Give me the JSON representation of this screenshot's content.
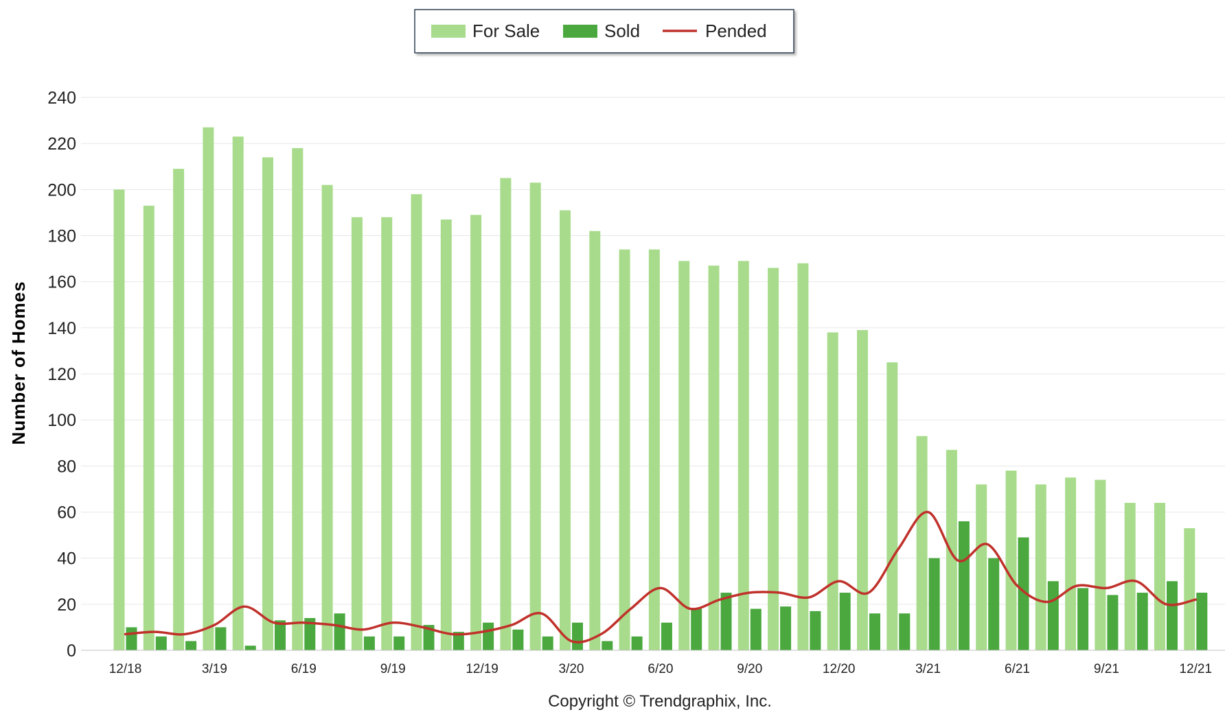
{
  "chart_data": {
    "type": "bar",
    "ylabel": "Number of Homes",
    "xlabel": "",
    "ylim": [
      0,
      240
    ],
    "yticks": [
      0,
      20,
      40,
      60,
      80,
      100,
      120,
      140,
      160,
      180,
      200,
      220,
      240
    ],
    "grid": true,
    "legend_position": "top-center",
    "categories": [
      "12/18",
      "1/19",
      "2/19",
      "3/19",
      "4/19",
      "5/19",
      "6/19",
      "7/19",
      "8/19",
      "9/19",
      "10/19",
      "11/19",
      "12/19",
      "1/20",
      "2/20",
      "3/20",
      "4/20",
      "5/20",
      "6/20",
      "7/20",
      "8/20",
      "9/20",
      "10/20",
      "11/20",
      "12/20",
      "1/21",
      "2/21",
      "3/21",
      "4/21",
      "5/21",
      "6/21",
      "7/21",
      "8/21",
      "9/21",
      "10/21",
      "11/21",
      "12/21"
    ],
    "tick_labels": [
      "12/18",
      "",
      "",
      "3/19",
      "",
      "",
      "6/19",
      "",
      "",
      "9/19",
      "",
      "",
      "12/19",
      "",
      "",
      "3/20",
      "",
      "",
      "6/20",
      "",
      "",
      "9/20",
      "",
      "",
      "12/20",
      "",
      "",
      "3/21",
      "",
      "",
      "6/21",
      "",
      "",
      "9/21",
      "",
      "",
      "12/21"
    ],
    "series": [
      {
        "name": "For Sale",
        "kind": "bar",
        "color": "#a8dc8c",
        "values": [
          200,
          193,
          209,
          227,
          223,
          214,
          218,
          202,
          188,
          188,
          198,
          187,
          189,
          205,
          203,
          191,
          182,
          174,
          174,
          169,
          167,
          169,
          166,
          168,
          138,
          139,
          125,
          93,
          87,
          72,
          78,
          72,
          75,
          74,
          64,
          64,
          53
        ]
      },
      {
        "name": "Sold",
        "kind": "bar",
        "color": "#4aa83e",
        "values": [
          10,
          6,
          4,
          10,
          2,
          13,
          14,
          16,
          6,
          6,
          11,
          8,
          12,
          9,
          6,
          12,
          4,
          6,
          12,
          18,
          25,
          18,
          19,
          17,
          25,
          16,
          16,
          40,
          56,
          40,
          49,
          30,
          27,
          24,
          25,
          30,
          25
        ]
      },
      {
        "name": "Pended",
        "kind": "line",
        "color": "#c0312b",
        "values": [
          7,
          8,
          7,
          11,
          19,
          12,
          12,
          11,
          9,
          12,
          10,
          7,
          8,
          11,
          16,
          4,
          7,
          18,
          27,
          18,
          22,
          25,
          25,
          23,
          30,
          25,
          44,
          60,
          39,
          46,
          28,
          21,
          28,
          27,
          30,
          20,
          22
        ]
      }
    ]
  },
  "copyright": "Copyright © Trendgraphix, Inc."
}
